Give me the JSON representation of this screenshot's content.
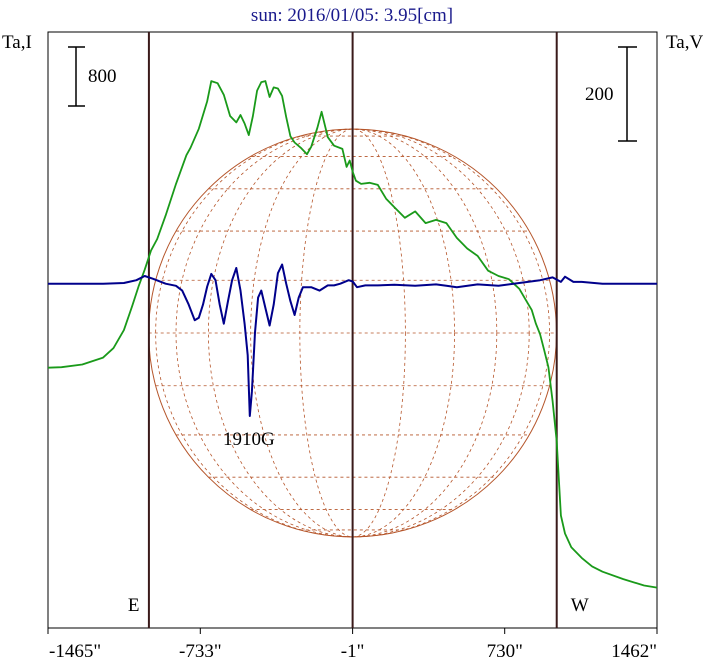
{
  "chart_data": {
    "type": "line",
    "title": "sun: 2016/01/05: 3.95[cm]",
    "left_axis_label": "Ta,I",
    "right_axis_label": "Ta,V",
    "left_scale_bar": "800",
    "right_scale_bar": "200",
    "x_ticks": [
      "-1465\"",
      "-733\"",
      "-1\"",
      "730\"",
      "1462\""
    ],
    "x_tick_values": [
      -1465,
      -733,
      -1,
      730,
      1462
    ],
    "xlim": [
      -1465,
      1462
    ],
    "limb_markers": [
      {
        "label": "E",
        "x": -980
      },
      {
        "label": "W",
        "x": 980
      }
    ],
    "center_line_x": -1,
    "solar_radius_arcsec": 980,
    "annotations": [
      {
        "text": "1910G",
        "x": -490
      }
    ],
    "series": [
      {
        "color": "#1a9a1a",
        "x": [
          -1465,
          -1400,
          -1300,
          -1200,
          -1150,
          -1100,
          -1060,
          -1030,
          -1000,
          -970,
          -940,
          -900,
          -850,
          -800,
          -780,
          -740,
          -700,
          -680,
          -650,
          -620,
          -590,
          -560,
          -540,
          -520,
          -500,
          -480,
          -460,
          -440,
          -420,
          -400,
          -380,
          -360,
          -340,
          -320,
          -300,
          -280,
          -250,
          -220,
          -200,
          -170,
          -150,
          -120,
          -90,
          -50,
          -30,
          -15,
          0,
          15,
          40,
          80,
          120,
          160,
          200,
          250,
          300,
          350,
          400,
          450,
          500,
          550,
          600,
          650,
          700,
          750,
          800,
          830,
          860,
          880,
          900,
          920,
          940,
          960,
          980,
          1000,
          1020,
          1050,
          1100,
          1150,
          1200,
          1300,
          1400,
          1462
        ],
        "y": [
          15,
          20,
          45,
          110,
          200,
          370,
          600,
          780,
          940,
          1120,
          1230,
          1450,
          1750,
          2020,
          2090,
          2270,
          2530,
          2720,
          2700,
          2590,
          2390,
          2330,
          2400,
          2320,
          2210,
          2390,
          2630,
          2710,
          2720,
          2570,
          2660,
          2650,
          2580,
          2380,
          2200,
          2140,
          2090,
          2030,
          2100,
          2280,
          2430,
          2190,
          2110,
          2080,
          1910,
          1970,
          1860,
          1780,
          1750,
          1760,
          1740,
          1610,
          1530,
          1430,
          1490,
          1380,
          1410,
          1380,
          1240,
          1140,
          1070,
          930,
          880,
          850,
          760,
          660,
          560,
          430,
          330,
          180,
          20,
          -300,
          -680,
          -1380,
          -1550,
          -1680,
          -1780,
          -1860,
          -1910,
          -1980,
          -2040,
          -2060
        ]
      },
      {
        "color": "#00008b",
        "x": [
          -1465,
          -1200,
          -1100,
          -1040,
          -1000,
          -960,
          -900,
          -850,
          -820,
          -790,
          -760,
          -740,
          -720,
          -700,
          -680,
          -660,
          -640,
          -620,
          -600,
          -580,
          -560,
          -540,
          -520,
          -505,
          -495,
          -485,
          -470,
          -455,
          -440,
          -420,
          -400,
          -380,
          -360,
          -340,
          -320,
          -300,
          -280,
          -260,
          -240,
          -200,
          -160,
          -120,
          -90,
          -60,
          -20,
          0,
          20,
          60,
          120,
          200,
          300,
          400,
          450,
          500,
          600,
          700,
          800,
          900,
          960,
          1000,
          1020,
          1060,
          1100,
          1200,
          1300,
          1462
        ],
        "y": [
          0,
          0,
          2,
          10,
          22,
          14,
          0,
          -6,
          -20,
          -58,
          -105,
          -98,
          -60,
          -8,
          28,
          10,
          -60,
          -115,
          -50,
          10,
          45,
          -20,
          -115,
          -205,
          -380,
          -310,
          -140,
          -40,
          -20,
          -70,
          -120,
          -60,
          30,
          55,
          0,
          -50,
          -90,
          -40,
          -10,
          -10,
          -20,
          -5,
          -5,
          0,
          10,
          6,
          -10,
          -5,
          -5,
          -3,
          -6,
          -2,
          -6,
          -10,
          -2,
          -6,
          2,
          10,
          18,
          5,
          20,
          5,
          5,
          0,
          0,
          0
        ]
      }
    ],
    "grid": false
  }
}
